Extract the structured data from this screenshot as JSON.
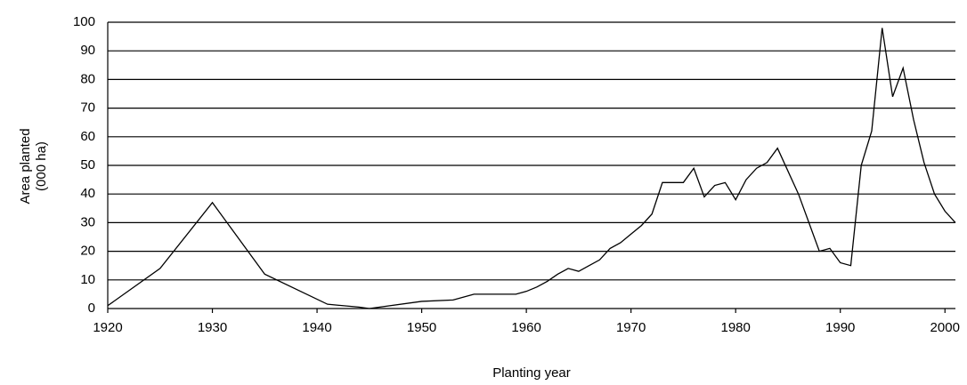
{
  "chart_data": {
    "type": "line",
    "y_label_lines": [
      "Area planted",
      "(000 ha)"
    ],
    "x_label": "Planting year",
    "x": [
      1920,
      1925,
      1930,
      1935,
      1941,
      1944,
      1945,
      1946,
      1950,
      1953,
      1954,
      1955,
      1959,
      1960,
      1961,
      1962,
      1963,
      1964,
      1965,
      1966,
      1967,
      1968,
      1969,
      1970,
      1971,
      1972,
      1973,
      1974,
      1975,
      1976,
      1977,
      1978,
      1979,
      1980,
      1981,
      1982,
      1983,
      1984,
      1985,
      1986,
      1987,
      1988,
      1989,
      1990,
      1991,
      1992,
      1993,
      1994,
      1995,
      1996,
      1997,
      1998,
      1999,
      2000,
      2001
    ],
    "values": [
      1,
      14,
      37,
      12,
      1.5,
      0.5,
      0,
      0.5,
      2.5,
      3,
      4,
      5,
      5,
      6,
      7.5,
      9.5,
      12,
      14,
      13,
      15,
      17,
      21,
      23,
      26,
      29,
      33,
      44,
      44,
      44,
      49,
      39,
      43,
      44,
      38,
      45,
      49,
      51,
      56,
      48,
      40,
      30,
      20,
      21,
      16,
      15,
      50,
      62,
      98,
      74,
      84,
      66,
      51,
      40,
      34,
      30
    ],
    "color": "#000000",
    "xlim": [
      1920,
      2001
    ],
    "ylim": [
      0,
      100
    ],
    "xticks": [
      1920,
      1930,
      1940,
      1950,
      1960,
      1970,
      1980,
      1990,
      2000
    ],
    "yticks": [
      0,
      10,
      20,
      30,
      40,
      50,
      60,
      70,
      80,
      90,
      100
    ],
    "grid": true
  }
}
